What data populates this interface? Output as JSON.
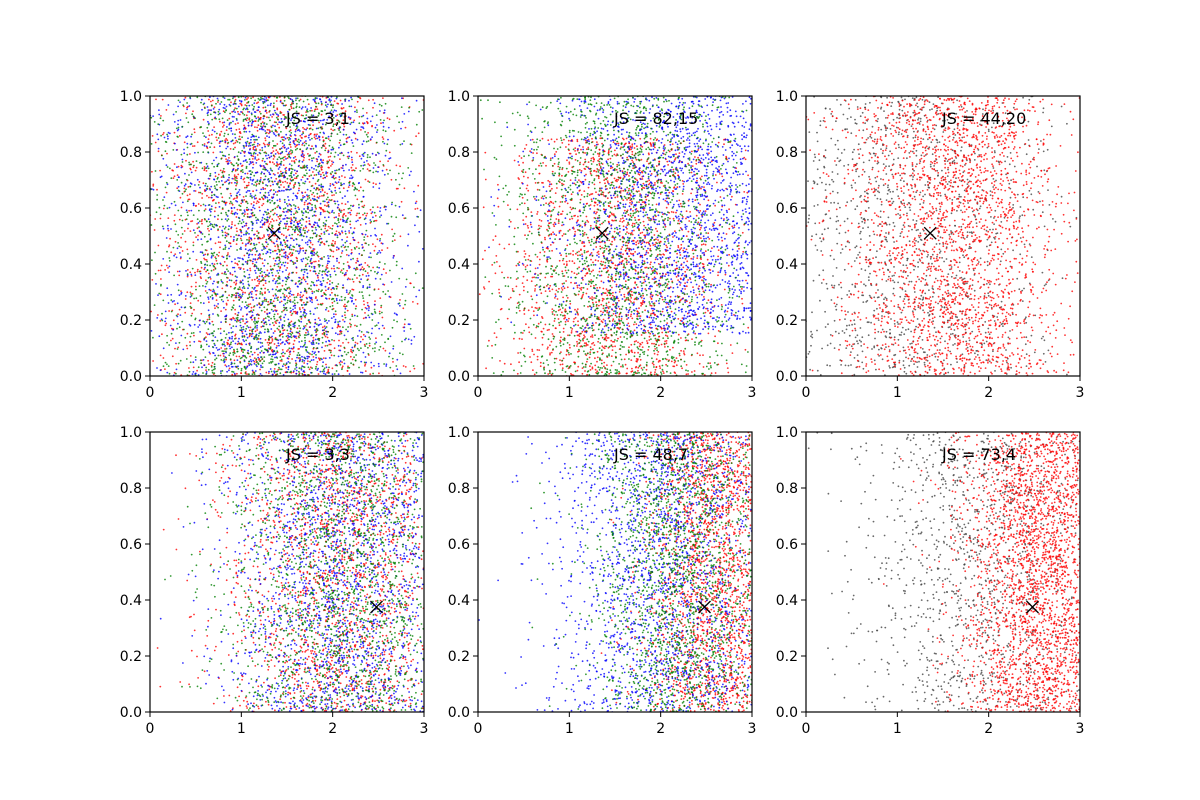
{
  "figure": {
    "background": "#ffffff",
    "rows": 2,
    "cols": 3
  },
  "chart_data": [
    {
      "type": "scatter",
      "annotation": "JS = 3,1",
      "xlim": [
        0,
        3
      ],
      "ylim": [
        0,
        1
      ],
      "xticks": [
        "0",
        "1",
        "2",
        "3"
      ],
      "yticks": [
        "0.0",
        "0.2",
        "0.4",
        "0.6",
        "0.8",
        "1.0"
      ],
      "grid": false,
      "marker": {
        "x": 1.36,
        "y": 0.51,
        "symbol": "x",
        "color": "#000000"
      },
      "series": [
        {
          "color": "#ff0000",
          "count": 1800,
          "distribution": {
            "x_center": 1.4,
            "x_spread": 0.7,
            "y_min": 0,
            "y_max": 1
          }
        },
        {
          "color": "#0000ff",
          "count": 1800,
          "distribution": {
            "x_center": 1.4,
            "x_spread": 0.7,
            "y_min": 0,
            "y_max": 1
          }
        },
        {
          "color": "#008000",
          "count": 1800,
          "distribution": {
            "x_center": 1.4,
            "x_spread": 0.7,
            "y_min": 0,
            "y_max": 1
          }
        }
      ]
    },
    {
      "type": "scatter",
      "annotation": "JS = 82,15",
      "xlim": [
        0,
        3
      ],
      "ylim": [
        0,
        1
      ],
      "xticks": [
        "0",
        "1",
        "2",
        "3"
      ],
      "yticks": [
        "0.0",
        "0.2",
        "0.4",
        "0.6",
        "0.8",
        "1.0"
      ],
      "grid": false,
      "marker": {
        "x": 1.36,
        "y": 0.51,
        "symbol": "x",
        "color": "#000000"
      },
      "series": [
        {
          "color": "#ff0000",
          "count": 1800,
          "distribution": {
            "x_center": 1.5,
            "x_spread": 0.65,
            "y_min": 0,
            "y_max": 0.85
          }
        },
        {
          "color": "#0000ff",
          "count": 1800,
          "distribution": {
            "x_center": 2.3,
            "x_spread": 0.75,
            "y_min": 0.15,
            "y_max": 1
          }
        },
        {
          "color": "#008000",
          "count": 1800,
          "distribution": {
            "x_center": 1.6,
            "x_spread": 0.65,
            "y_min": 0,
            "y_max": 1
          }
        }
      ]
    },
    {
      "type": "scatter",
      "annotation": "JS = 44,20",
      "xlim": [
        0,
        3
      ],
      "ylim": [
        0,
        1
      ],
      "xticks": [
        "0",
        "1",
        "2",
        "3"
      ],
      "yticks": [
        "0.0",
        "0.2",
        "0.4",
        "0.6",
        "0.8",
        "1.0"
      ],
      "grid": false,
      "marker": {
        "x": 1.36,
        "y": 0.51,
        "symbol": "x",
        "color": "#000000"
      },
      "series": [
        {
          "color": "#444444",
          "count": 1200,
          "distribution": {
            "x_center": 1.1,
            "x_spread": 0.8,
            "y_min": 0,
            "y_max": 1
          }
        },
        {
          "color": "#ff0000",
          "count": 2400,
          "distribution": {
            "x_center": 1.6,
            "x_spread": 0.6,
            "y_min": 0,
            "y_max": 1
          }
        }
      ]
    },
    {
      "type": "scatter",
      "annotation": "JS = 3,3",
      "xlim": [
        0,
        3
      ],
      "ylim": [
        0,
        1
      ],
      "xticks": [
        "0",
        "1",
        "2",
        "3"
      ],
      "yticks": [
        "0.0",
        "0.2",
        "0.4",
        "0.6",
        "0.8",
        "1.0"
      ],
      "grid": false,
      "marker": {
        "x": 2.48,
        "y": 0.375,
        "symbol": "x",
        "color": "#000000"
      },
      "series": [
        {
          "color": "#ff0000",
          "count": 1800,
          "distribution": {
            "x_center": 2.1,
            "x_spread": 0.65,
            "y_min": 0,
            "y_max": 1
          }
        },
        {
          "color": "#0000ff",
          "count": 1800,
          "distribution": {
            "x_center": 2.1,
            "x_spread": 0.65,
            "y_min": 0,
            "y_max": 1
          }
        },
        {
          "color": "#008000",
          "count": 1800,
          "distribution": {
            "x_center": 2.1,
            "x_spread": 0.65,
            "y_min": 0,
            "y_max": 1
          }
        }
      ]
    },
    {
      "type": "scatter",
      "annotation": "JS = 48,7",
      "xlim": [
        0,
        3
      ],
      "ylim": [
        0,
        1
      ],
      "xticks": [
        "0",
        "1",
        "2",
        "3"
      ],
      "yticks": [
        "0.0",
        "0.2",
        "0.4",
        "0.6",
        "0.8",
        "1.0"
      ],
      "grid": false,
      "marker": {
        "x": 2.48,
        "y": 0.375,
        "symbol": "x",
        "color": "#000000"
      },
      "series": [
        {
          "color": "#ff0000",
          "count": 1800,
          "distribution": {
            "x_center": 2.6,
            "x_spread": 0.4,
            "y_min": 0,
            "y_max": 1
          }
        },
        {
          "color": "#0000ff",
          "count": 1800,
          "distribution": {
            "x_center": 2.0,
            "x_spread": 0.6,
            "y_min": 0,
            "y_max": 1
          }
        },
        {
          "color": "#008000",
          "count": 1800,
          "distribution": {
            "x_center": 2.2,
            "x_spread": 0.5,
            "y_min": 0,
            "y_max": 1
          }
        }
      ]
    },
    {
      "type": "scatter",
      "annotation": "JS = 73,4",
      "xlim": [
        0,
        3
      ],
      "ylim": [
        0,
        1
      ],
      "xticks": [
        "0",
        "1",
        "2",
        "3"
      ],
      "yticks": [
        "0.0",
        "0.2",
        "0.4",
        "0.6",
        "0.8",
        "1.0"
      ],
      "grid": false,
      "marker": {
        "x": 2.48,
        "y": 0.375,
        "symbol": "x",
        "color": "#000000"
      },
      "series": [
        {
          "color": "#444444",
          "count": 1200,
          "distribution": {
            "x_center": 1.9,
            "x_spread": 0.65,
            "y_min": 0,
            "y_max": 1
          }
        },
        {
          "color": "#ff0000",
          "count": 2400,
          "distribution": {
            "x_center": 2.6,
            "x_spread": 0.45,
            "y_min": 0,
            "y_max": 1
          }
        }
      ]
    }
  ]
}
